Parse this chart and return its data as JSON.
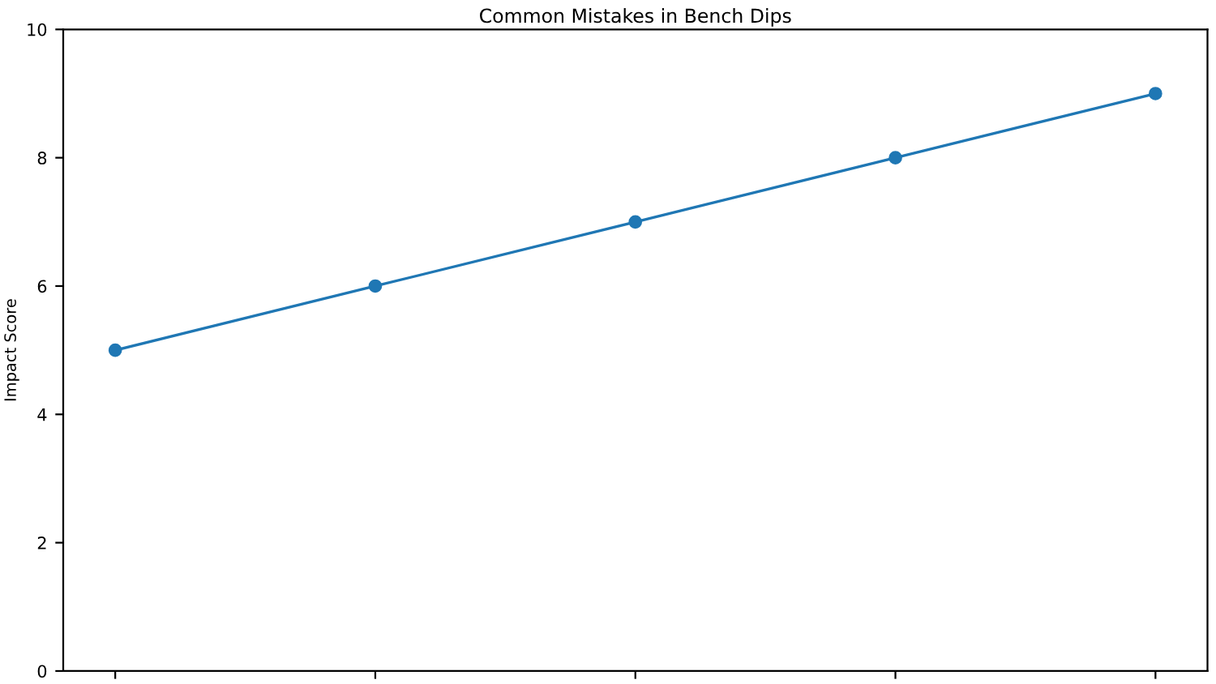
{
  "chart_data": {
    "type": "line",
    "title": "Common Mistakes in Bench Dips",
    "ylabel": "Impact Score",
    "categories": [
      null,
      null,
      null,
      null,
      null
    ],
    "series": [
      {
        "color": "#1f77b4",
        "values": [
          5,
          6,
          7,
          8,
          9
        ]
      }
    ],
    "ylim": [
      0,
      10
    ],
    "yticks": [
      0,
      2,
      4,
      6,
      8,
      10
    ],
    "grid": false,
    "marker": "circle",
    "line_style": "solid"
  }
}
